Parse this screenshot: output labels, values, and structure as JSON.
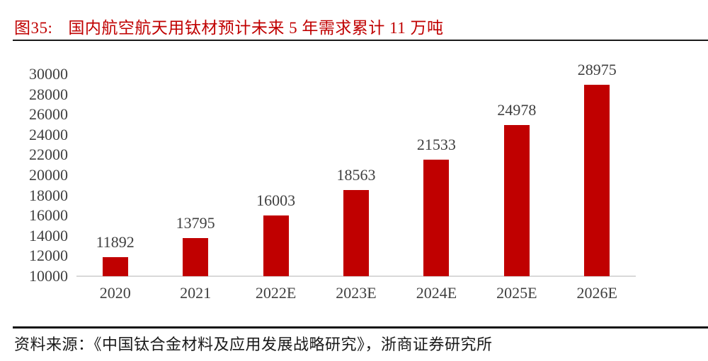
{
  "header": {
    "figure_label": "图35:",
    "title": "国内航空航天用钛材预计未来 5 年需求累计 11 万吨"
  },
  "footer": {
    "source_text": "资料来源：《中国钛合金材料及应用发展战略研究》，浙商证券研究所"
  },
  "colors": {
    "title_red": "#c00000",
    "bar_red": "#c00000",
    "axis_text": "#3f3f3f",
    "axis_line": "#d9d9d9",
    "rule_dark": "#1a1a1a"
  },
  "chart_data": {
    "type": "bar",
    "title": "国内航空航天用钛材预计未来 5 年需求累计 11 万吨",
    "categories": [
      "2020",
      "2021",
      "2022E",
      "2023E",
      "2024E",
      "2025E",
      "2026E"
    ],
    "values": [
      11892,
      13795,
      16003,
      18563,
      21533,
      24978,
      28975
    ],
    "xlabel": "",
    "ylabel": "",
    "ylim": [
      10000,
      30000
    ],
    "ytick_step": 2000,
    "grid": false,
    "legend": false,
    "bar_color": "#c00000",
    "value_labels_shown": true
  }
}
